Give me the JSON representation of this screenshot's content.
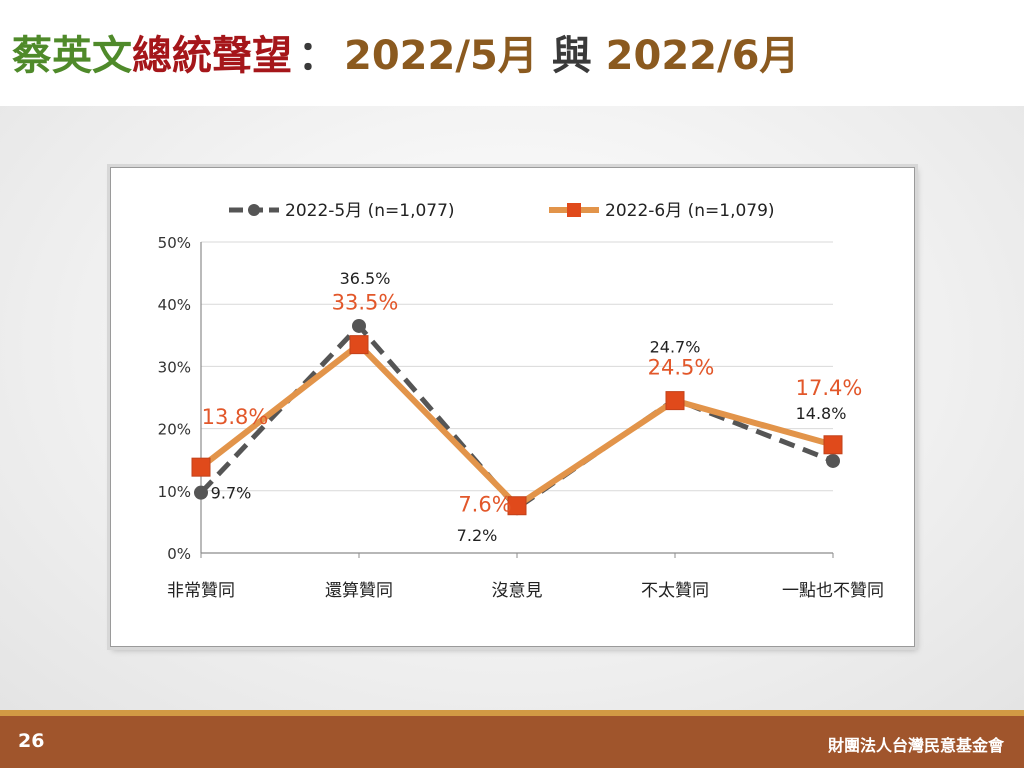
{
  "slide": {
    "title_part1": "蔡英文",
    "title_part2": "總統聲望",
    "title_colon": "：",
    "title_part3": "2022/5月",
    "title_conj": "與",
    "title_part4": "2022/6月",
    "page_number": "26",
    "organization": "財團法人台灣民意基金會"
  },
  "colors": {
    "title_green": "#4f8a2a",
    "title_red": "#a5161a",
    "title_brown": "#8b5a1f",
    "may_series": "#555555",
    "june_series_line": "#e2944a",
    "june_series_marker": "#e04a1b",
    "june_label": "#e2572a",
    "footer": "#a0552c"
  },
  "chart_data": {
    "type": "line",
    "categories": [
      "非常贊同",
      "還算贊同",
      "沒意見",
      "不太贊同",
      "一點也不贊同"
    ],
    "yticks": [
      "0%",
      "10%",
      "20%",
      "30%",
      "40%",
      "50%"
    ],
    "ylim": [
      0,
      50
    ],
    "grid": true,
    "legend_position": "top",
    "series": [
      {
        "name": "2022-5月  (n=1,077)",
        "values": [
          9.7,
          36.5,
          7.2,
          24.7,
          14.8
        ],
        "labels": [
          "9.7%",
          "36.5%",
          "7.2%",
          "24.7%",
          "14.8%"
        ],
        "style": "dashed-dark-circle"
      },
      {
        "name": "2022-6月  (n=1,079)",
        "values": [
          13.8,
          33.5,
          7.6,
          24.5,
          17.4
        ],
        "labels": [
          "13.8%",
          "33.5%",
          "7.6%",
          "24.5%",
          "17.4%"
        ],
        "style": "solid-orange-square"
      }
    ]
  }
}
